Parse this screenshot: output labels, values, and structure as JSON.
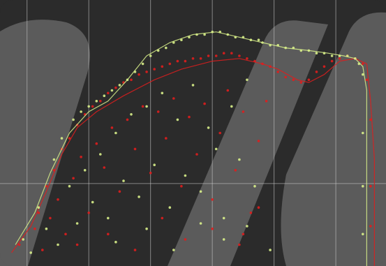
{
  "chart_data": {
    "type": "scatter",
    "title": "",
    "xlabel": "",
    "ylabel": "",
    "xlim": [
      0,
      100
    ],
    "ylim": [
      0,
      100
    ],
    "grid": true,
    "grid_x": [
      7,
      23,
      39,
      55,
      71,
      87
    ],
    "grid_y": [
      31
    ],
    "legend": "none",
    "colors": {
      "background": "#2b2b2b",
      "panel": "#3a3a3a",
      "watermark": "#bdbdbd",
      "grid": "#cfcfcf",
      "series_red": "#e01d1d",
      "series_yellow": "#d8f08a"
    },
    "series": [
      {
        "color": "#e01d1d",
        "values_note": "",
        "curve": [
          [
            3,
            5
          ],
          [
            8,
            15
          ],
          [
            12,
            28
          ],
          [
            16,
            42
          ],
          [
            20,
            52
          ],
          [
            25,
            58
          ],
          [
            32,
            64
          ],
          [
            40,
            70
          ],
          [
            47,
            74
          ],
          [
            55,
            77
          ],
          [
            62,
            78
          ],
          [
            68,
            76
          ],
          [
            72,
            74
          ],
          [
            77,
            70
          ],
          [
            80,
            69
          ],
          [
            84,
            72
          ],
          [
            88,
            77
          ],
          [
            92,
            78
          ],
          [
            95,
            76
          ],
          [
            96,
            62
          ],
          [
            97,
            40
          ],
          [
            97,
            10
          ],
          [
            97,
            0
          ]
        ],
        "scatter": [
          [
            5,
            8
          ],
          [
            9,
            14
          ],
          [
            10,
            20
          ],
          [
            11,
            6
          ],
          [
            12,
            30
          ],
          [
            13,
            18
          ],
          [
            14,
            36
          ],
          [
            15,
            25
          ],
          [
            16,
            44
          ],
          [
            17,
            12
          ],
          [
            18,
            48
          ],
          [
            19,
            33
          ],
          [
            20,
            53
          ],
          [
            21,
            41
          ],
          [
            22,
            57
          ],
          [
            23,
            20
          ],
          [
            24,
            60
          ],
          [
            25,
            46
          ],
          [
            26,
            62
          ],
          [
            27,
            37
          ],
          [
            28,
            65
          ],
          [
            29,
            52
          ],
          [
            30,
            67
          ],
          [
            31,
            28
          ],
          [
            32,
            69
          ],
          [
            33,
            55
          ],
          [
            34,
            70
          ],
          [
            35,
            44
          ],
          [
            36,
            72
          ],
          [
            37,
            60
          ],
          [
            38,
            73
          ],
          [
            39,
            35
          ],
          [
            40,
            74
          ],
          [
            41,
            58
          ],
          [
            42,
            75
          ],
          [
            43,
            48
          ],
          [
            44,
            76
          ],
          [
            45,
            63
          ],
          [
            46,
            77
          ],
          [
            47,
            30
          ],
          [
            48,
            77
          ],
          [
            49,
            56
          ],
          [
            50,
            78
          ],
          [
            51,
            42
          ],
          [
            52,
            78
          ],
          [
            53,
            61
          ],
          [
            54,
            79
          ],
          [
            55,
            25
          ],
          [
            56,
            79
          ],
          [
            57,
            50
          ],
          [
            58,
            80
          ],
          [
            59,
            66
          ],
          [
            60,
            80
          ],
          [
            61,
            36
          ],
          [
            62,
            79
          ],
          [
            63,
            58
          ],
          [
            64,
            78
          ],
          [
            65,
            20
          ],
          [
            66,
            77
          ],
          [
            67,
            47
          ],
          [
            68,
            76
          ],
          [
            69,
            62
          ],
          [
            70,
            75
          ],
          [
            72,
            73
          ],
          [
            74,
            71
          ],
          [
            76,
            70
          ],
          [
            78,
            69
          ],
          [
            80,
            70
          ],
          [
            82,
            73
          ],
          [
            84,
            75
          ],
          [
            86,
            77
          ],
          [
            88,
            78
          ],
          [
            90,
            79
          ],
          [
            92,
            78
          ],
          [
            94,
            76
          ],
          [
            95,
            70
          ],
          [
            96,
            55
          ],
          [
            96,
            30
          ],
          [
            96,
            15
          ],
          [
            20,
            8
          ],
          [
            28,
            12
          ],
          [
            35,
            6
          ],
          [
            42,
            18
          ],
          [
            48,
            10
          ],
          [
            55,
            14
          ],
          [
            62,
            8
          ],
          [
            67,
            22
          ],
          [
            63,
            12
          ]
        ]
      },
      {
        "color": "#d8f08a",
        "values_note": "",
        "curve": [
          [
            4,
            8
          ],
          [
            9,
            20
          ],
          [
            13,
            35
          ],
          [
            18,
            50
          ],
          [
            23,
            58
          ],
          [
            28,
            62
          ],
          [
            33,
            70
          ],
          [
            38,
            79
          ],
          [
            44,
            84
          ],
          [
            50,
            87
          ],
          [
            56,
            88
          ],
          [
            62,
            86
          ],
          [
            68,
            84
          ],
          [
            74,
            82
          ],
          [
            80,
            81
          ],
          [
            85,
            80
          ],
          [
            89,
            79
          ],
          [
            92,
            78
          ],
          [
            94,
            75
          ],
          [
            95,
            66
          ],
          [
            95,
            40
          ],
          [
            95,
            18
          ],
          [
            95,
            0
          ]
        ],
        "scatter": [
          [
            6,
            10
          ],
          [
            8,
            5
          ],
          [
            10,
            22
          ],
          [
            12,
            14
          ],
          [
            14,
            40
          ],
          [
            15,
            8
          ],
          [
            16,
            48
          ],
          [
            18,
            30
          ],
          [
            19,
            55
          ],
          [
            20,
            16
          ],
          [
            21,
            58
          ],
          [
            22,
            36
          ],
          [
            23,
            60
          ],
          [
            24,
            24
          ],
          [
            25,
            62
          ],
          [
            26,
            42
          ],
          [
            27,
            64
          ],
          [
            28,
            18
          ],
          [
            29,
            66
          ],
          [
            30,
            50
          ],
          [
            31,
            68
          ],
          [
            32,
            32
          ],
          [
            33,
            70
          ],
          [
            34,
            57
          ],
          [
            35,
            73
          ],
          [
            36,
            26
          ],
          [
            37,
            76
          ],
          [
            38,
            60
          ],
          [
            39,
            79
          ],
          [
            40,
            38
          ],
          [
            41,
            81
          ],
          [
            42,
            65
          ],
          [
            43,
            82
          ],
          [
            44,
            22
          ],
          [
            45,
            84
          ],
          [
            46,
            55
          ],
          [
            47,
            85
          ],
          [
            48,
            34
          ],
          [
            49,
            86
          ],
          [
            50,
            68
          ],
          [
            51,
            87
          ],
          [
            52,
            28
          ],
          [
            53,
            87
          ],
          [
            54,
            52
          ],
          [
            55,
            88
          ],
          [
            56,
            44
          ],
          [
            57,
            88
          ],
          [
            58,
            18
          ],
          [
            59,
            87
          ],
          [
            60,
            60
          ],
          [
            61,
            86
          ],
          [
            62,
            40
          ],
          [
            63,
            86
          ],
          [
            64,
            70
          ],
          [
            65,
            85
          ],
          [
            66,
            30
          ],
          [
            67,
            85
          ],
          [
            68,
            84
          ],
          [
            70,
            83
          ],
          [
            72,
            83
          ],
          [
            74,
            82
          ],
          [
            76,
            82
          ],
          [
            78,
            81
          ],
          [
            80,
            81
          ],
          [
            82,
            80
          ],
          [
            84,
            80
          ],
          [
            86,
            79
          ],
          [
            88,
            79
          ],
          [
            90,
            79
          ],
          [
            92,
            78
          ],
          [
            93,
            76
          ],
          [
            94,
            72
          ],
          [
            94,
            50
          ],
          [
            94,
            30
          ],
          [
            94,
            12
          ],
          [
            30,
            9
          ],
          [
            38,
            14
          ],
          [
            45,
            6
          ],
          [
            52,
            16
          ],
          [
            58,
            10
          ],
          [
            64,
            15
          ],
          [
            70,
            6
          ]
        ]
      }
    ]
  }
}
